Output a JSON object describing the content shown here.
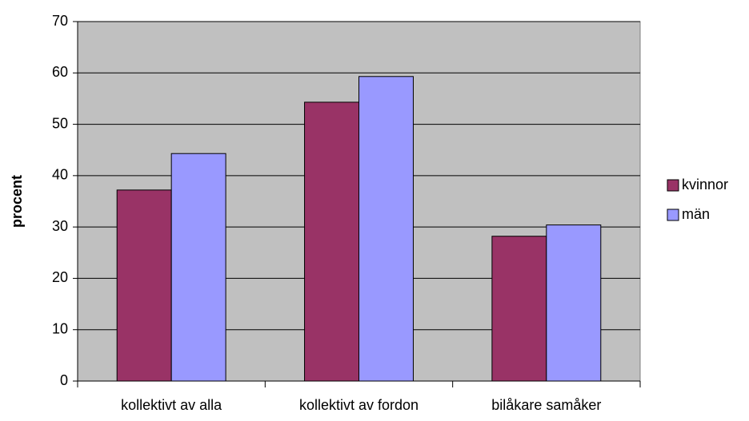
{
  "chart_data": {
    "type": "bar",
    "y_label": "procent",
    "categories": [
      "kollektivt av alla",
      "kollektivt av fordon",
      "bilåkare samåker"
    ],
    "series": [
      {
        "name": "kvinnor",
        "color": "#993366",
        "values": [
          37.2,
          54.3,
          28.2
        ]
      },
      {
        "name": "män",
        "color": "#9999ff",
        "values": [
          44.3,
          59.3,
          30.4
        ]
      }
    ],
    "ylim": [
      0,
      70
    ],
    "yticks": [
      0,
      10,
      20,
      30,
      40,
      50,
      60,
      70
    ],
    "grid": true,
    "legend": "right"
  }
}
